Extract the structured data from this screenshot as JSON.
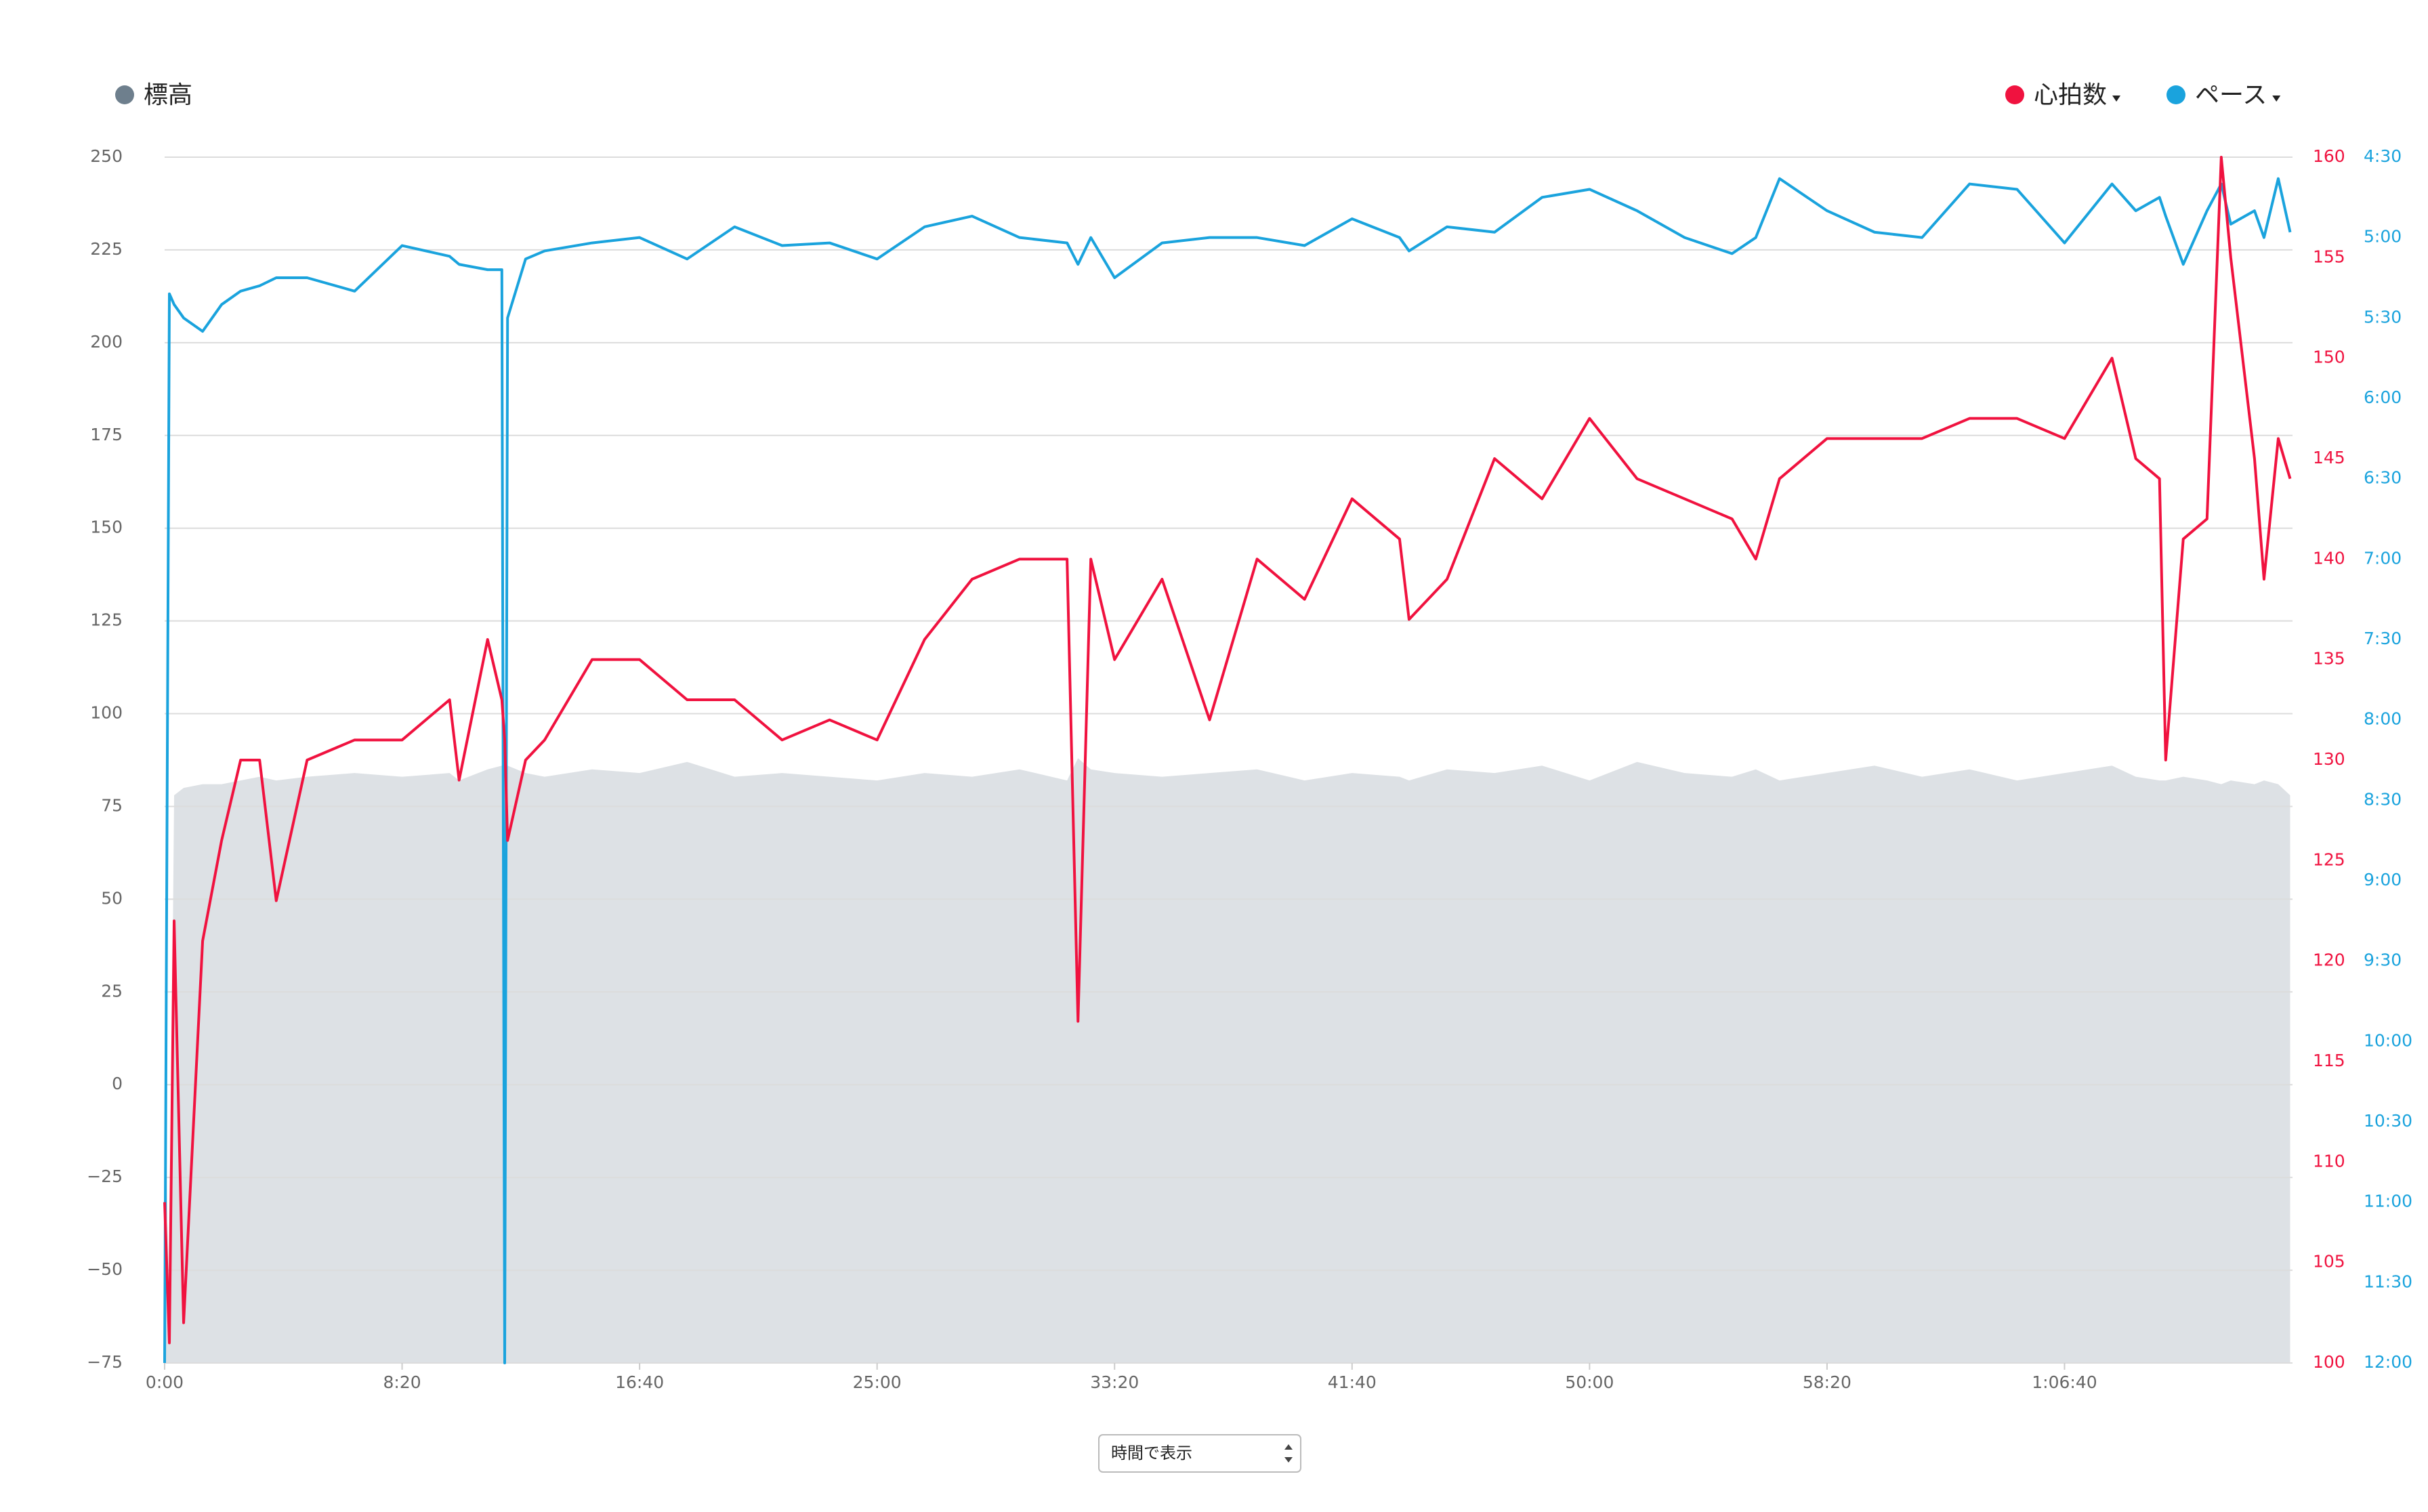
{
  "chart_data": {
    "type": "line",
    "x": [
      0,
      10,
      20,
      40,
      80,
      120,
      160,
      200,
      235,
      300,
      400,
      500,
      600,
      620,
      680,
      710,
      716,
      722,
      760,
      800,
      900,
      1000,
      1100,
      1200,
      1300,
      1400,
      1500,
      1600,
      1700,
      1800,
      1900,
      1923,
      1950,
      2000,
      2100,
      2200,
      2300,
      2400,
      2500,
      2600,
      2620,
      2700,
      2800,
      2900,
      3000,
      3100,
      3200,
      3300,
      3350,
      3400,
      3500,
      3600,
      3700,
      3800,
      3900,
      4000,
      4100,
      4150,
      4200,
      4213,
      4250,
      4300,
      4330,
      4350,
      4400,
      4420,
      4450,
      4475
    ],
    "xlim": [
      0,
      4480
    ],
    "xticks": [
      {
        "value": 0,
        "label": "0:00"
      },
      {
        "value": 500,
        "label": "8:20"
      },
      {
        "value": 1000,
        "label": "16:40"
      },
      {
        "value": 1500,
        "label": "25:00"
      },
      {
        "value": 2000,
        "label": "33:20"
      },
      {
        "value": 2500,
        "label": "41:40"
      },
      {
        "value": 3000,
        "label": "50:00"
      },
      {
        "value": 3500,
        "label": "58:20"
      },
      {
        "value": 4000,
        "label": "1:06:40"
      }
    ],
    "ylim": [
      -75,
      250
    ],
    "yticks": [
      {
        "value": -75,
        "label": "−75"
      },
      {
        "value": -50,
        "label": "−50"
      },
      {
        "value": -25,
        "label": "−25"
      },
      0,
      25,
      50,
      75,
      100,
      125,
      150,
      175,
      200,
      225,
      250
    ],
    "y2lim": [
      100,
      160
    ],
    "y2ticks": [
      100,
      105,
      110,
      115,
      120,
      125,
      130,
      135,
      140,
      145,
      150,
      155,
      160
    ],
    "y3lim": [
      720,
      270
    ],
    "y3ticks": [
      {
        "value": 270,
        "label": "4:30"
      },
      {
        "value": 300,
        "label": "5:00"
      },
      {
        "value": 330,
        "label": "5:30"
      },
      {
        "value": 360,
        "label": "6:00"
      },
      {
        "value": 390,
        "label": "6:30"
      },
      {
        "value": 420,
        "label": "7:00"
      },
      {
        "value": 450,
        "label": "7:30"
      },
      {
        "value": 480,
        "label": "8:00"
      },
      {
        "value": 510,
        "label": "8:30"
      },
      {
        "value": 540,
        "label": "9:00"
      },
      {
        "value": 570,
        "label": "9:30"
      },
      {
        "value": 600,
        "label": "10:00"
      },
      {
        "value": 630,
        "label": "10:30"
      },
      {
        "value": 660,
        "label": "11:00"
      },
      {
        "value": 690,
        "label": "11:30"
      },
      {
        "value": 720,
        "label": "12:00"
      }
    ],
    "grid": true,
    "series": [
      {
        "name": "標高",
        "type": "area",
        "color": "#6e7f8d",
        "fill": "#dde1e5",
        "axis": "y",
        "values": [
          5,
          -60,
          78,
          80,
          81,
          81,
          82,
          83,
          82,
          83,
          84,
          83,
          84,
          82,
          85,
          86,
          88,
          86,
          84,
          83,
          85,
          84,
          87,
          83,
          84,
          83,
          82,
          84,
          83,
          85,
          82,
          88,
          85,
          84,
          83,
          84,
          85,
          82,
          84,
          83,
          82,
          85,
          84,
          86,
          82,
          87,
          84,
          83,
          85,
          82,
          84,
          86,
          83,
          85,
          82,
          84,
          86,
          83,
          82,
          82,
          83,
          82,
          81,
          82,
          81,
          82,
          81,
          78
        ]
      },
      {
        "name": "心拍数",
        "type": "line",
        "color": "#f0123f",
        "axis": "y2",
        "values": [
          108,
          101,
          122,
          102,
          121,
          126,
          130,
          130,
          123,
          130,
          131,
          131,
          133,
          129,
          136,
          133,
          131,
          126,
          130,
          131,
          135,
          135,
          133,
          133,
          131,
          132,
          131,
          136,
          139,
          140,
          140,
          117,
          140,
          135,
          139,
          132,
          140,
          138,
          143,
          141,
          137,
          139,
          145,
          143,
          147,
          144,
          143,
          142,
          140,
          144,
          146,
          146,
          146,
          147,
          147,
          146,
          150,
          145,
          144,
          130,
          141,
          142,
          160,
          155,
          145,
          139,
          146,
          144
        ]
      },
      {
        "name": "ペース",
        "type": "line",
        "color": "#1aa3dd",
        "axis": "y3",
        "values": [
          720,
          321,
          325,
          330,
          335,
          325,
          320,
          318,
          315,
          315,
          320,
          303,
          307,
          310,
          312,
          312,
          720,
          330,
          308,
          305,
          302,
          300,
          308,
          296,
          303,
          302,
          308,
          296,
          292,
          300,
          302,
          310,
          300,
          315,
          302,
          300,
          300,
          303,
          293,
          300,
          305,
          296,
          298,
          285,
          282,
          290,
          300,
          306,
          300,
          278,
          290,
          298,
          300,
          280,
          282,
          302,
          280,
          290,
          285,
          292,
          310,
          290,
          280,
          295,
          290,
          300,
          278,
          298
        ]
      }
    ],
    "control": "時間で表示"
  }
}
